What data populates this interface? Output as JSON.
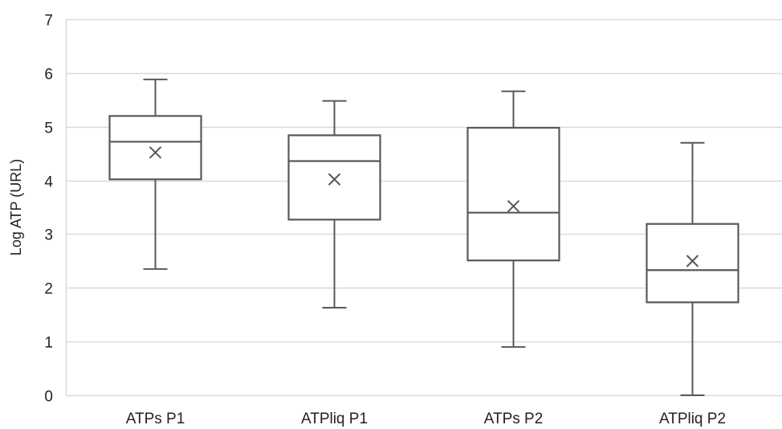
{
  "chart_data": {
    "type": "box",
    "ylabel": "Log ATP (URL)",
    "xlabel": "",
    "ylim": [
      0,
      7
    ],
    "yticks": [
      "0",
      "1",
      "2",
      "3",
      "4",
      "5",
      "6",
      "7"
    ],
    "grid": true,
    "legend": "none",
    "categories": [
      "ATPs P1",
      "ATPliq P1",
      "ATPs P2",
      "ATPliq P2"
    ],
    "boxes": [
      {
        "min": 2.35,
        "q1": 4.02,
        "median": 4.72,
        "q3": 5.2,
        "max": 5.88,
        "mean": 4.52
      },
      {
        "min": 1.63,
        "q1": 3.27,
        "median": 4.36,
        "q3": 4.84,
        "max": 5.48,
        "mean": 4.02
      },
      {
        "min": 0.9,
        "q1": 2.51,
        "median": 3.4,
        "q3": 4.98,
        "max": 5.66,
        "mean": 3.52
      },
      {
        "min": 0.0,
        "q1": 1.73,
        "median": 2.33,
        "q3": 3.19,
        "max": 4.7,
        "mean": 2.5
      }
    ],
    "colors": {
      "box_stroke": "#595959",
      "grid": "#d9d9d9",
      "text": "#222222"
    }
  }
}
